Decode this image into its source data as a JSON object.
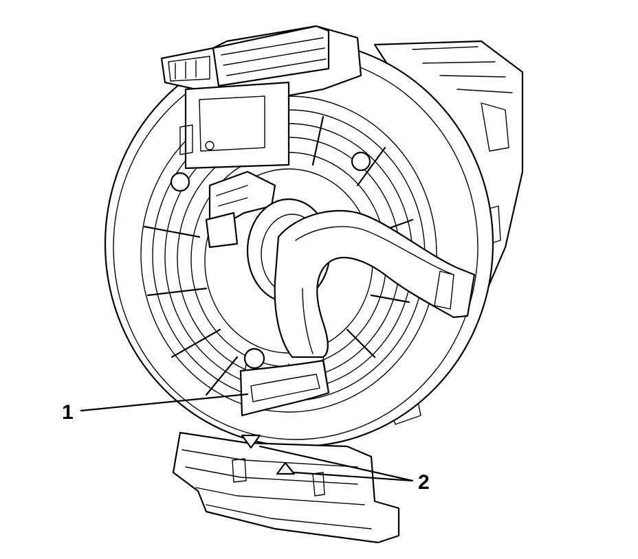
{
  "diagram": {
    "callouts": [
      {
        "id": "1",
        "label": "1"
      },
      {
        "id": "2",
        "label": "2"
      }
    ],
    "colors": {
      "line": "#000000",
      "background": "#ffffff"
    }
  }
}
